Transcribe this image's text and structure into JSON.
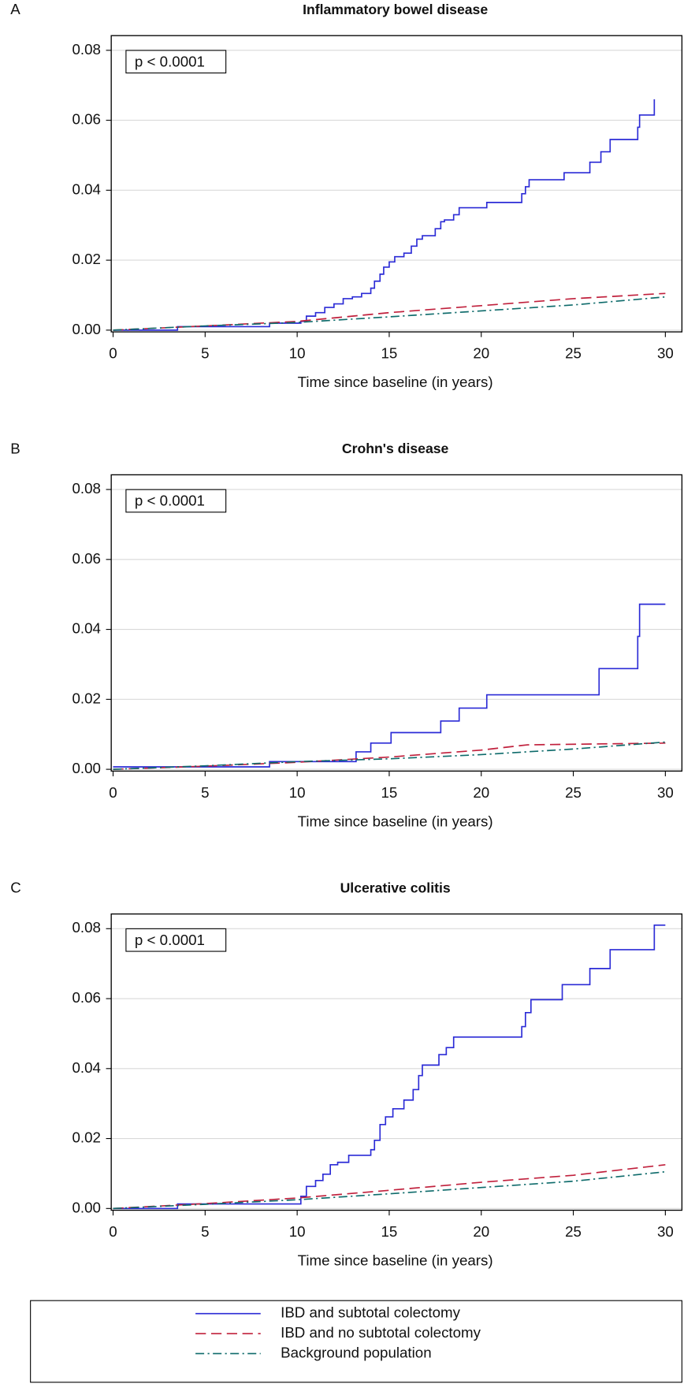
{
  "chart_data": [
    {
      "type": "line",
      "panel_label": "A",
      "title": "Inflammatory bowel disease",
      "xlabel": "Time since baseline (in years)",
      "annotation": "p < 0.0001",
      "xlim": [
        -0.1,
        30.9
      ],
      "ylim": [
        -0.0005,
        0.0842
      ],
      "xticks": [
        0,
        5,
        10,
        15,
        20,
        25,
        30
      ],
      "yticks": [
        {
          "value": 0,
          "label": "0.00"
        },
        0.02,
        0.04,
        0.06,
        0.08
      ],
      "grid": true,
      "series": [
        {
          "name": "IBD and subtotal colectomy",
          "color": "#2b2bd6",
          "style": "solid",
          "step": true,
          "x": [
            0,
            3.5,
            8.5,
            10.2,
            10.5,
            11,
            11.5,
            12,
            12.5,
            13,
            13.5,
            14,
            14.2,
            14.5,
            14.7,
            15,
            15.3,
            15.8,
            16.2,
            16.5,
            16.8,
            17.5,
            17.8,
            18,
            18.5,
            18.8,
            20.3,
            22.2,
            22.4,
            22.6,
            24.5,
            25.9,
            26.5,
            27,
            28.5,
            28.6,
            29.4
          ],
          "values": [
            0,
            0.001,
            0.002,
            0.0025,
            0.004,
            0.005,
            0.0065,
            0.0075,
            0.009,
            0.0095,
            0.0105,
            0.012,
            0.014,
            0.016,
            0.018,
            0.0195,
            0.021,
            0.022,
            0.024,
            0.026,
            0.027,
            0.029,
            0.031,
            0.0315,
            0.033,
            0.035,
            0.0365,
            0.039,
            0.041,
            0.043,
            0.045,
            0.048,
            0.051,
            0.0545,
            0.058,
            0.0615,
            0.066
          ]
        },
        {
          "name": "IBD and no subtotal colectomy",
          "color": "#c0203c",
          "style": "dashed",
          "step": false,
          "x": [
            0,
            5,
            10,
            15,
            20,
            25,
            30
          ],
          "values": [
            0,
            0.0012,
            0.0025,
            0.005,
            0.007,
            0.009,
            0.0105
          ]
        },
        {
          "name": "Background population",
          "color": "#0e6b6b",
          "style": "dashdot",
          "step": false,
          "x": [
            0,
            5,
            10,
            15,
            20,
            25,
            30
          ],
          "values": [
            0,
            0.0012,
            0.0022,
            0.0038,
            0.0055,
            0.0072,
            0.0095
          ]
        }
      ]
    },
    {
      "type": "line",
      "panel_label": "B",
      "title": "Crohn's disease",
      "xlabel": "Time since baseline (in years)",
      "annotation": "p < 0.0001",
      "xlim": [
        -0.1,
        30.9
      ],
      "ylim": [
        -0.0005,
        0.0842
      ],
      "xticks": [
        0,
        5,
        10,
        15,
        20,
        25,
        30
      ],
      "yticks": [
        {
          "value": 0,
          "label": "0.00"
        },
        0.02,
        0.04,
        0.06,
        0.08
      ],
      "grid": true,
      "series": [
        {
          "color": "#2b2bd6",
          "style": "solid",
          "step": true,
          "x": [
            0,
            8.5,
            13.2,
            14,
            15.1,
            17.8,
            18.8,
            20.3,
            26.4,
            28.5,
            28.6,
            30
          ],
          "values": [
            0.0007,
            0.0022,
            0.005,
            0.0075,
            0.0105,
            0.0138,
            0.0175,
            0.0213,
            0.0288,
            0.038,
            0.0472,
            0.0472
          ]
        },
        {
          "color": "#c0203c",
          "style": "dashed",
          "step": false,
          "x": [
            0,
            5,
            10,
            15,
            20,
            22.5,
            30
          ],
          "values": [
            0,
            0.0009,
            0.002,
            0.0035,
            0.0055,
            0.007,
            0.0075
          ]
        },
        {
          "color": "#0e6b6b",
          "style": "dashdot",
          "step": false,
          "x": [
            0,
            5,
            10,
            15,
            20,
            25,
            30
          ],
          "values": [
            0,
            0.001,
            0.0022,
            0.003,
            0.0042,
            0.0058,
            0.0078
          ]
        }
      ]
    },
    {
      "type": "line",
      "panel_label": "C",
      "title": "Ulcerative colitis",
      "xlabel": "Time since baseline (in years)",
      "annotation": "p < 0.0001",
      "xlim": [
        -0.1,
        30.9
      ],
      "ylim": [
        -0.0005,
        0.0842
      ],
      "xticks": [
        0,
        5,
        10,
        15,
        20,
        25,
        30
      ],
      "yticks": [
        {
          "value": 0,
          "label": "0.00"
        },
        0.02,
        0.04,
        0.06,
        0.08
      ],
      "grid": true,
      "series": [
        {
          "color": "#2b2bd6",
          "style": "solid",
          "step": true,
          "x": [
            0,
            3.5,
            10.2,
            10.5,
            11,
            11.4,
            11.8,
            12.2,
            12.8,
            14,
            14.2,
            14.5,
            14.8,
            15.2,
            15.8,
            16.3,
            16.6,
            16.8,
            17.7,
            18.1,
            18.5,
            22.2,
            22.4,
            22.7,
            24.4,
            25.9,
            27,
            29.4,
            30
          ],
          "values": [
            0,
            0.0013,
            0.0035,
            0.0063,
            0.008,
            0.0098,
            0.0125,
            0.0132,
            0.0152,
            0.0168,
            0.0195,
            0.024,
            0.0262,
            0.0285,
            0.031,
            0.034,
            0.038,
            0.041,
            0.044,
            0.046,
            0.049,
            0.052,
            0.056,
            0.0597,
            0.064,
            0.0686,
            0.074,
            0.081,
            0.081
          ]
        },
        {
          "color": "#c0203c",
          "style": "dashed",
          "step": false,
          "x": [
            0,
            5,
            10,
            15,
            20,
            25,
            30
          ],
          "values": [
            0,
            0.0014,
            0.003,
            0.0052,
            0.0075,
            0.0095,
            0.0125
          ]
        },
        {
          "color": "#0e6b6b",
          "style": "dashdot",
          "step": false,
          "x": [
            0,
            5,
            10,
            15,
            20,
            25,
            30
          ],
          "values": [
            0,
            0.0012,
            0.0025,
            0.0042,
            0.006,
            0.0078,
            0.0105
          ]
        }
      ]
    }
  ]
}
